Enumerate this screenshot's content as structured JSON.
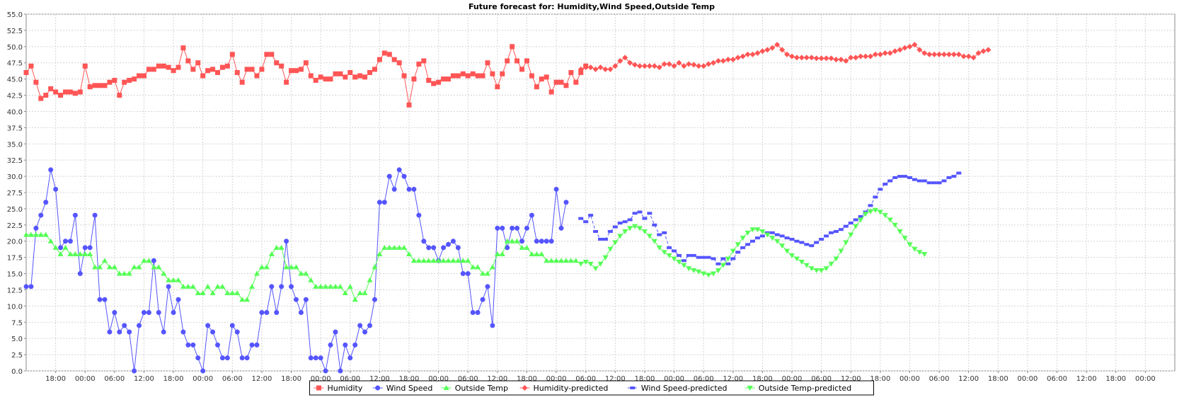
{
  "chart_data": {
    "type": "line",
    "title": "Future forecast for: Humidity,Wind Speed,Outside Temp",
    "xlabel": "",
    "ylabel": "",
    "grid": true,
    "legend_position": "bottom",
    "ylim": [
      0,
      55
    ],
    "y_ticks": [
      "0.0",
      "2.5",
      "5.0",
      "7.5",
      "10.0",
      "12.5",
      "15.0",
      "17.5",
      "20.0",
      "22.5",
      "25.0",
      "27.5",
      "30.0",
      "32.5",
      "35.0",
      "37.5",
      "40.0",
      "42.5",
      "45.0",
      "47.5",
      "50.0",
      "52.5",
      "55.0"
    ],
    "x_unit": "hours",
    "xlim": [
      0,
      234
    ],
    "x_ticks": [
      {
        "x": 6,
        "label": "18:00"
      },
      {
        "x": 12,
        "label": "00:00"
      },
      {
        "x": 18,
        "label": "06:00"
      },
      {
        "x": 24,
        "label": "12:00"
      },
      {
        "x": 30,
        "label": "18:00"
      },
      {
        "x": 36,
        "label": "00:00"
      },
      {
        "x": 42,
        "label": "06:00"
      },
      {
        "x": 48,
        "label": "12:00"
      },
      {
        "x": 54,
        "label": "18:00"
      },
      {
        "x": 60,
        "label": "00:00"
      },
      {
        "x": 66,
        "label": "06:00"
      },
      {
        "x": 72,
        "label": "12:00"
      },
      {
        "x": 78,
        "label": "18:00"
      },
      {
        "x": 84,
        "label": "00:00"
      },
      {
        "x": 90,
        "label": "06:00"
      },
      {
        "x": 96,
        "label": "12:00"
      },
      {
        "x": 102,
        "label": "18:00"
      },
      {
        "x": 108,
        "label": "00:00"
      },
      {
        "x": 114,
        "label": "06:00"
      },
      {
        "x": 120,
        "label": "12:00"
      },
      {
        "x": 126,
        "label": "18:00"
      },
      {
        "x": 132,
        "label": "00:00"
      },
      {
        "x": 138,
        "label": "06:00"
      },
      {
        "x": 144,
        "label": "12:00"
      },
      {
        "x": 150,
        "label": "18:00"
      },
      {
        "x": 156,
        "label": "00:00"
      },
      {
        "x": 162,
        "label": "06:00"
      },
      {
        "x": 168,
        "label": "12:00"
      },
      {
        "x": 174,
        "label": "18:00"
      },
      {
        "x": 180,
        "label": "00:00"
      },
      {
        "x": 186,
        "label": "06:00"
      },
      {
        "x": 192,
        "label": "12:00"
      },
      {
        "x": 198,
        "label": "18:00"
      },
      {
        "x": 204,
        "label": "00:00"
      },
      {
        "x": 210,
        "label": "06:00"
      },
      {
        "x": 216,
        "label": "12:00"
      },
      {
        "x": 222,
        "label": "18:00"
      },
      {
        "x": 228,
        "label": "00:00"
      }
    ],
    "series": [
      {
        "name": "Humidity",
        "color": "#ff5555",
        "marker": "square",
        "dashed": false,
        "x0": 0,
        "step": 1,
        "values": [
          46,
          47,
          44.5,
          42,
          42.5,
          43.5,
          43,
          42.5,
          43,
          43,
          42.8,
          43,
          47,
          43.8,
          44,
          44,
          44,
          44.5,
          44.8,
          42.5,
          44.5,
          44.8,
          45,
          45.5,
          45.5,
          46.5,
          46.5,
          47,
          47,
          46.8,
          46.3,
          46.8,
          49.8,
          47.8,
          46.5,
          47.5,
          45.5,
          46.3,
          46.5,
          46,
          46.8,
          47,
          48.8,
          46,
          44.5,
          46.5,
          46.5,
          45.5,
          46.5,
          48.8,
          48.8,
          47.5,
          47,
          44.5,
          46.3,
          46.3,
          46.5,
          47.5,
          45.5,
          44.8,
          45.3,
          45,
          45,
          45.8,
          45.8,
          45.3,
          46,
          45.3,
          45.5,
          45.3,
          46,
          46.5,
          48,
          49,
          48.8,
          48,
          47.5,
          45.5,
          41,
          45,
          47.3,
          47.8,
          44.8,
          44.3,
          44.5,
          45,
          45,
          45.5,
          45.5,
          45.8,
          45.5,
          45.8,
          45.5,
          45.5,
          47.5,
          45.8,
          43.8,
          45.8,
          47.8,
          50,
          47.8,
          46.5,
          47.8,
          45.5,
          43.8,
          45,
          45.3,
          43,
          44.5,
          44.5,
          44,
          46,
          44.5,
          46,
          47
        ]
      },
      {
        "name": "Wind Speed",
        "color": "#5555ff",
        "marker": "circle",
        "dashed": false,
        "x0": 0,
        "step": 1,
        "values": [
          13,
          13,
          22,
          24,
          26,
          31,
          28,
          19,
          20,
          20,
          24,
          15,
          19,
          19,
          24,
          11,
          11,
          6,
          9,
          6,
          7,
          6,
          0,
          7,
          9,
          9,
          17,
          9,
          6,
          13,
          9,
          11,
          6,
          4,
          4,
          2,
          0,
          7,
          6,
          4,
          2,
          2,
          7,
          6,
          2,
          2,
          4,
          4,
          9,
          9,
          13,
          9,
          13,
          20,
          13,
          11,
          9,
          11,
          2,
          2,
          2,
          0,
          4,
          6,
          0,
          4,
          2,
          4,
          7,
          6,
          7,
          11,
          26,
          26,
          30,
          28,
          31,
          30,
          28,
          28,
          24,
          20,
          19,
          19,
          17,
          19,
          19.5,
          20,
          19,
          15,
          15,
          9,
          9,
          11,
          13,
          7,
          22,
          22,
          19,
          22,
          22,
          20,
          22,
          24,
          20,
          20,
          20,
          20,
          28,
          22,
          26
        ]
      },
      {
        "name": "Outside Temp",
        "color": "#55ff55",
        "marker": "triangle-up",
        "dashed": false,
        "x0": 0,
        "step": 1,
        "values": [
          21,
          21,
          21,
          21,
          21,
          20,
          19,
          18,
          19,
          18,
          18,
          18,
          18,
          18,
          16,
          16,
          17,
          16,
          16,
          15,
          15,
          15,
          16,
          16,
          17,
          17,
          16,
          16,
          15,
          14,
          14,
          14,
          13,
          13,
          13,
          12,
          12,
          13,
          12,
          13,
          13,
          12,
          12,
          12,
          11,
          11,
          13,
          15,
          16,
          16,
          18,
          19,
          19,
          16,
          16,
          16,
          15,
          15,
          14,
          13,
          13,
          13,
          13,
          13,
          13,
          12,
          13,
          11,
          12,
          12,
          14,
          16,
          18,
          19,
          19,
          19,
          19,
          19,
          18,
          17,
          17,
          17,
          17,
          17,
          17,
          17,
          17,
          17,
          17,
          17,
          17,
          16,
          16,
          15,
          15,
          16,
          18,
          18,
          20,
          20,
          20,
          19,
          19,
          18,
          18,
          18,
          17,
          17,
          17,
          17,
          17,
          17,
          17
        ]
      },
      {
        "name": "Humidity-predicted",
        "color": "#ff5555",
        "marker": "diamond",
        "dashed": false,
        "x0": 113,
        "step": 1,
        "values": [
          46.5,
          46.8,
          46.8,
          46.5,
          46.8,
          46.5,
          46.5,
          47,
          47.8,
          48.3,
          47.5,
          47.2,
          47,
          47,
          47,
          47,
          46.8,
          47.3,
          47.3,
          47,
          47.5,
          47,
          47.3,
          47.2,
          47,
          47,
          47.3,
          47.5,
          47.8,
          47.8,
          48,
          48,
          48.3,
          48.5,
          48.8,
          48.8,
          49,
          49.3,
          49.5,
          49.8,
          50.3,
          49.5,
          48.8,
          48.5,
          48.3,
          48.3,
          48.3,
          48.3,
          48.2,
          48.2,
          48.2,
          48.2,
          48,
          48,
          47.8,
          48.3,
          48.3,
          48.5,
          48.5,
          48.5,
          48.8,
          48.8,
          49,
          49,
          49.3,
          49.5,
          49.8,
          50,
          50.3,
          49.5,
          49,
          48.8,
          48.8,
          48.8,
          48.8,
          48.8,
          48.8,
          48.8,
          48.5,
          48.5,
          48.3,
          49,
          49.3,
          49.5
        ]
      },
      {
        "name": "Wind Speed-predicted",
        "color": "#5555ff",
        "marker": "dash",
        "dashed": true,
        "x0": 113,
        "step": 1,
        "values": [
          23.5,
          23,
          24,
          21.5,
          20.3,
          20.3,
          21.5,
          22.2,
          22.8,
          23,
          23.3,
          24.3,
          24.5,
          23.5,
          24.3,
          22.5,
          21,
          21.3,
          19,
          18.5,
          17.8,
          17,
          17.8,
          17.8,
          17.5,
          17.5,
          17.5,
          17.3,
          16.5,
          17.3,
          16.5,
          17.3,
          18.3,
          19,
          19.5,
          20,
          20.5,
          20.8,
          21.3,
          21.3,
          21,
          20.8,
          20.5,
          20.3,
          20,
          19.8,
          19.5,
          19.3,
          19.8,
          20.3,
          20.8,
          21.3,
          21.5,
          21.8,
          22.3,
          22.8,
          23.3,
          23.8,
          24.5,
          25.5,
          26.8,
          28,
          28.8,
          29.3,
          29.8,
          30,
          30,
          29.8,
          29.5,
          29.3,
          29.3,
          29,
          29,
          29,
          29.3,
          29.8,
          30,
          30.5
        ]
      },
      {
        "name": "Outside Temp-predicted",
        "color": "#55ff55",
        "marker": "triangle-down",
        "dashed": false,
        "x0": 113,
        "step": 1,
        "values": [
          16.5,
          16.8,
          16.5,
          15.8,
          16.5,
          17.5,
          18.8,
          19.8,
          20.8,
          21.5,
          22,
          22.3,
          22,
          21.5,
          20.8,
          20,
          19,
          18.3,
          17.8,
          17.3,
          16.8,
          16.3,
          15.8,
          15.5,
          15.3,
          15,
          14.8,
          15,
          15.5,
          16.3,
          17.3,
          18.5,
          19.5,
          20.5,
          21.3,
          21.8,
          21.8,
          21.5,
          21,
          20.5,
          20,
          19.3,
          18.5,
          17.8,
          17.3,
          16.8,
          16.3,
          15.8,
          15.5,
          15.5,
          15.8,
          16.5,
          17.3,
          18.5,
          19.8,
          21,
          22.3,
          23.3,
          24.2,
          24.6,
          24.8,
          24.5,
          24,
          23.3,
          22.5,
          21.5,
          20.5,
          19.5,
          18.8,
          18.3,
          18
        ]
      }
    ]
  }
}
